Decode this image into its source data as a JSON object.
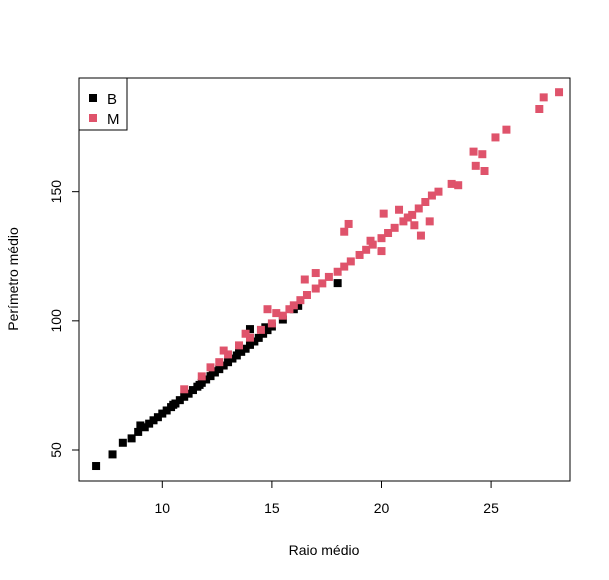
{
  "chart_data": {
    "type": "scatter",
    "title": "",
    "xlabel": "Raio médio",
    "ylabel": "Perímetro médio",
    "xlim": [
      6.2,
      28.6
    ],
    "ylim": [
      38.0,
      194.0
    ],
    "x_ticks": [
      10,
      15,
      20,
      25
    ],
    "y_ticks": [
      50,
      100,
      150
    ],
    "grid": false,
    "legend": {
      "position": "top-left"
    },
    "series": [
      {
        "name": "B",
        "color": "#000000",
        "points": [
          [
            6.98,
            43.8
          ],
          [
            7.73,
            48.3
          ],
          [
            8.2,
            52.8
          ],
          [
            8.6,
            54.5
          ],
          [
            8.9,
            57.0
          ],
          [
            9.2,
            58.8
          ],
          [
            9.4,
            60.2
          ],
          [
            9.6,
            61.5
          ],
          [
            9.8,
            62.7
          ],
          [
            10.0,
            64.1
          ],
          [
            10.2,
            65.3
          ],
          [
            10.4,
            66.6
          ],
          [
            10.6,
            68.0
          ],
          [
            10.8,
            69.3
          ],
          [
            11.0,
            70.6
          ],
          [
            11.2,
            71.8
          ],
          [
            11.4,
            73.2
          ],
          [
            11.6,
            74.5
          ],
          [
            11.8,
            76.0
          ],
          [
            12.0,
            77.3
          ],
          [
            12.2,
            78.6
          ],
          [
            12.4,
            80.0
          ],
          [
            12.6,
            81.3
          ],
          [
            12.8,
            82.7
          ],
          [
            13.0,
            84.0
          ],
          [
            13.2,
            85.4
          ],
          [
            13.4,
            86.6
          ],
          [
            13.6,
            88.0
          ],
          [
            13.8,
            89.2
          ],
          [
            14.0,
            90.7
          ],
          [
            14.2,
            92.0
          ],
          [
            14.4,
            93.4
          ],
          [
            14.6,
            95.0
          ],
          [
            14.8,
            96.4
          ],
          [
            15.0,
            97.8
          ],
          [
            15.5,
            100.5
          ],
          [
            16.0,
            104.5
          ],
          [
            16.2,
            105.8
          ],
          [
            18.0,
            114.6
          ],
          [
            13.5,
            89.5
          ],
          [
            14.0,
            96.8
          ],
          [
            14.7,
            97.5
          ],
          [
            12.3,
            80.5
          ],
          [
            11.7,
            75.2
          ],
          [
            9.0,
            59.5
          ],
          [
            10.5,
            67.5
          ]
        ]
      },
      {
        "name": "M",
        "color": "#DF536B",
        "points": [
          [
            11.0,
            73.5
          ],
          [
            11.8,
            78.5
          ],
          [
            12.2,
            82.0
          ],
          [
            12.6,
            84.0
          ],
          [
            13.0,
            87.0
          ],
          [
            13.5,
            90.5
          ],
          [
            14.0,
            93.5
          ],
          [
            14.5,
            96.5
          ],
          [
            15.0,
            99.0
          ],
          [
            15.5,
            102.0
          ],
          [
            15.8,
            104.5
          ],
          [
            16.0,
            106.0
          ],
          [
            16.3,
            108.0
          ],
          [
            16.6,
            110.0
          ],
          [
            17.0,
            112.5
          ],
          [
            17.3,
            114.5
          ],
          [
            17.6,
            117.0
          ],
          [
            18.0,
            119.0
          ],
          [
            18.3,
            121.0
          ],
          [
            18.6,
            123.0
          ],
          [
            19.0,
            125.5
          ],
          [
            19.3,
            127.5
          ],
          [
            19.6,
            129.5
          ],
          [
            20.0,
            132.0
          ],
          [
            20.3,
            134.0
          ],
          [
            20.6,
            136.0
          ],
          [
            21.0,
            138.5
          ],
          [
            21.4,
            141.0
          ],
          [
            21.7,
            143.5
          ],
          [
            22.0,
            146.0
          ],
          [
            22.3,
            148.5
          ],
          [
            22.6,
            150.0
          ],
          [
            23.2,
            153.0
          ],
          [
            23.5,
            152.5
          ],
          [
            24.2,
            165.5
          ],
          [
            24.6,
            164.5
          ],
          [
            24.3,
            160.0
          ],
          [
            24.7,
            158.0
          ],
          [
            25.2,
            171.0
          ],
          [
            25.7,
            174.0
          ],
          [
            27.2,
            182.0
          ],
          [
            27.4,
            186.5
          ],
          [
            28.1,
            188.5
          ],
          [
            18.3,
            134.5
          ],
          [
            18.5,
            137.5
          ],
          [
            20.1,
            141.5
          ],
          [
            20.8,
            143.0
          ],
          [
            21.2,
            140.0
          ],
          [
            21.5,
            137.0
          ],
          [
            19.5,
            131.0
          ],
          [
            17.0,
            118.5
          ],
          [
            16.5,
            116.0
          ],
          [
            15.2,
            103.0
          ],
          [
            14.8,
            104.5
          ],
          [
            13.8,
            95.0
          ],
          [
            12.8,
            88.5
          ],
          [
            22.2,
            138.5
          ],
          [
            21.8,
            133.0
          ],
          [
            20.0,
            127.0
          ]
        ]
      }
    ]
  }
}
